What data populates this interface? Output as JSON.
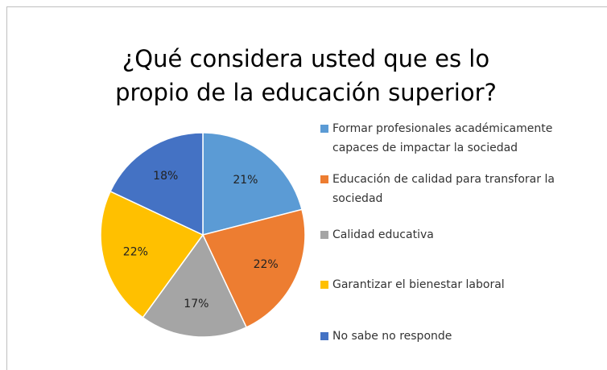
{
  "chart_data": {
    "type": "pie",
    "title": "¿Qué considera usted que es lo propio de la educación superior?",
    "categories": [
      "Formar profesionales académicamente capaces de impactar la sociedad",
      "Educación de calidad para transforar la sociedad",
      "Calidad educativa",
      "Garantizar el bienestar laboral",
      "No sabe no responde"
    ],
    "values": [
      21,
      22,
      17,
      22,
      18
    ],
    "value_labels": [
      "21%",
      "22%",
      "17%",
      "22%",
      "18%"
    ],
    "colors": [
      "#5b9bd5",
      "#ed7d31",
      "#a5a5a5",
      "#ffc000",
      "#4472c4"
    ],
    "legend": "right"
  }
}
